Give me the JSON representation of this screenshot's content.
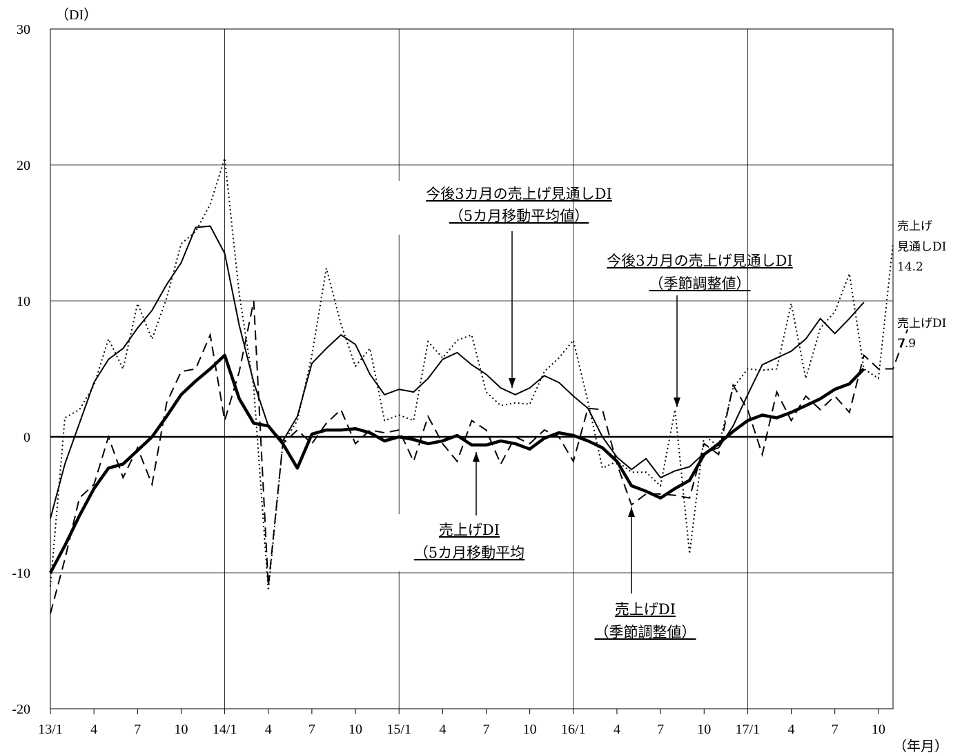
{
  "chart_data": {
    "type": "line",
    "title": "",
    "ylabel": "（DI）",
    "xlabel": "（年月）",
    "ylim": [
      -20,
      30
    ],
    "yticks": [
      30,
      20,
      10,
      0,
      -10,
      -20
    ],
    "x_tick_labels": [
      "13/1",
      "4",
      "7",
      "10",
      "14/1",
      "4",
      "7",
      "10",
      "15/1",
      "4",
      "7",
      "10",
      "16/1",
      "4",
      "7",
      "10",
      "17/1",
      "4",
      "7",
      "10"
    ],
    "grid": true,
    "series": [
      {
        "name": "今後3カ月の売上げ見通しDI（5カ月移動平均値）",
        "style": "thin-solid",
        "values": [
          -6,
          -2,
          1,
          4,
          5.7,
          6.5,
          8,
          9.3,
          11.2,
          12.8,
          15.4,
          15.5,
          13.5,
          8.2,
          4,
          0.8,
          -0.3,
          1.5,
          5.4,
          6.5,
          7.5,
          6.8,
          4.6,
          3.1,
          3.5,
          3.3,
          4.3,
          5.7,
          6.2,
          5.3,
          4.6,
          3.6,
          3.1,
          3.6,
          4.5,
          4.0,
          3.0,
          2.1,
          0,
          -1.5,
          -2.4,
          -1.6,
          -3.0,
          -2.5,
          -2.2,
          -1.2,
          -0.8,
          0.8,
          3.1,
          5.3,
          5.8,
          6.3,
          7.2,
          8.7,
          7.6,
          8.7,
          9.9
        ]
      },
      {
        "name": "今後3カ月の売上げ見通しDI（季節調整値）",
        "style": "dotted",
        "values": [
          -11,
          1.4,
          2,
          3.8,
          7.2,
          5.0,
          9.8,
          7.2,
          10.2,
          14.2,
          15.1,
          17.1,
          20.5,
          10.5,
          3.6,
          -11.3,
          -0.5,
          1.2,
          6.0,
          12.4,
          8.3,
          5.2,
          6.5,
          1.2,
          1.6,
          1.2,
          7.0,
          5.8,
          7.1,
          7.5,
          3.3,
          2.3,
          2.5,
          2.4,
          4.8,
          5.8,
          7.1,
          2.6,
          -2.3,
          -1.8,
          -2.6,
          -2.6,
          -3.6,
          2.0,
          -8.6,
          0.1,
          -0.7,
          3.6,
          5.0,
          4.9,
          5.0,
          9.8,
          4.3,
          8.0,
          9.2,
          12.0,
          5.0,
          4.3,
          14.2
        ]
      },
      {
        "name": "売上げDI（5カ月移動平均）",
        "style": "thick-solid",
        "values": [
          -10,
          -8,
          -5.8,
          -3.8,
          -2.3,
          -2.0,
          -1.0,
          0,
          1.5,
          3.1,
          4.1,
          5.0,
          6.0,
          2.8,
          1.0,
          0.8,
          -0.5,
          -2.3,
          0.2,
          0.5,
          0.5,
          0.6,
          0.3,
          -0.3,
          0,
          -0.2,
          -0.5,
          -0.3,
          0.1,
          -0.6,
          -0.6,
          -0.3,
          -0.5,
          -0.9,
          -0.1,
          0.3,
          0.1,
          -0.3,
          -0.8,
          -1.8,
          -3.6,
          -4.0,
          -4.5,
          -3.8,
          -3.2,
          -1.3,
          -0.5,
          0.4,
          1.2,
          1.6,
          1.4,
          1.8,
          2.3,
          2.8,
          3.5,
          3.9,
          5.0
        ]
      },
      {
        "name": "売上げDI（季節調整値）",
        "style": "dashed",
        "values": [
          -13,
          -9,
          -4.5,
          -3.5,
          0,
          -3,
          -0.8,
          -3.5,
          2.5,
          4.8,
          5.0,
          7.5,
          1.2,
          4.8,
          10.0,
          -11.0,
          -0.5,
          0.5,
          -0.5,
          1.0,
          2.0,
          -0.5,
          0.5,
          0.3,
          0.5,
          -1.8,
          1.5,
          -0.5,
          -1.8,
          1.2,
          0.5,
          -2.0,
          0,
          -0.5,
          0.5,
          0,
          -1.8,
          2.1,
          2.0,
          -2.0,
          -5.0,
          -4.2,
          -4.2,
          -4.3,
          -4.5,
          -0.5,
          -1.3,
          3.8,
          2.0,
          -1.3,
          3.3,
          1.2,
          3.0,
          2.0,
          3.0,
          1.8,
          6.0,
          5.0,
          5.0,
          7.9
        ]
      }
    ],
    "annotations": [
      {
        "id": "forecast-ma",
        "lines": [
          "今後3カ月の売上げ見通しDI",
          "（5カ月移動平均値）"
        ]
      },
      {
        "id": "forecast-sa",
        "lines": [
          "今後3カ月の売上げ見通しDI",
          "（季節調整値）"
        ]
      },
      {
        "id": "sales-ma",
        "lines": [
          "売上げDI",
          "（5カ月移動平均"
        ]
      },
      {
        "id": "sales-sa",
        "lines": [
          "売上げDI",
          "（季節調整値）"
        ]
      }
    ],
    "end_labels": [
      {
        "id": "forecast-end",
        "lines": [
          "売上げ",
          "見通しDI",
          "14.2"
        ]
      },
      {
        "id": "sales-end",
        "lines": [
          "売上げDI",
          "7.9"
        ]
      }
    ]
  }
}
